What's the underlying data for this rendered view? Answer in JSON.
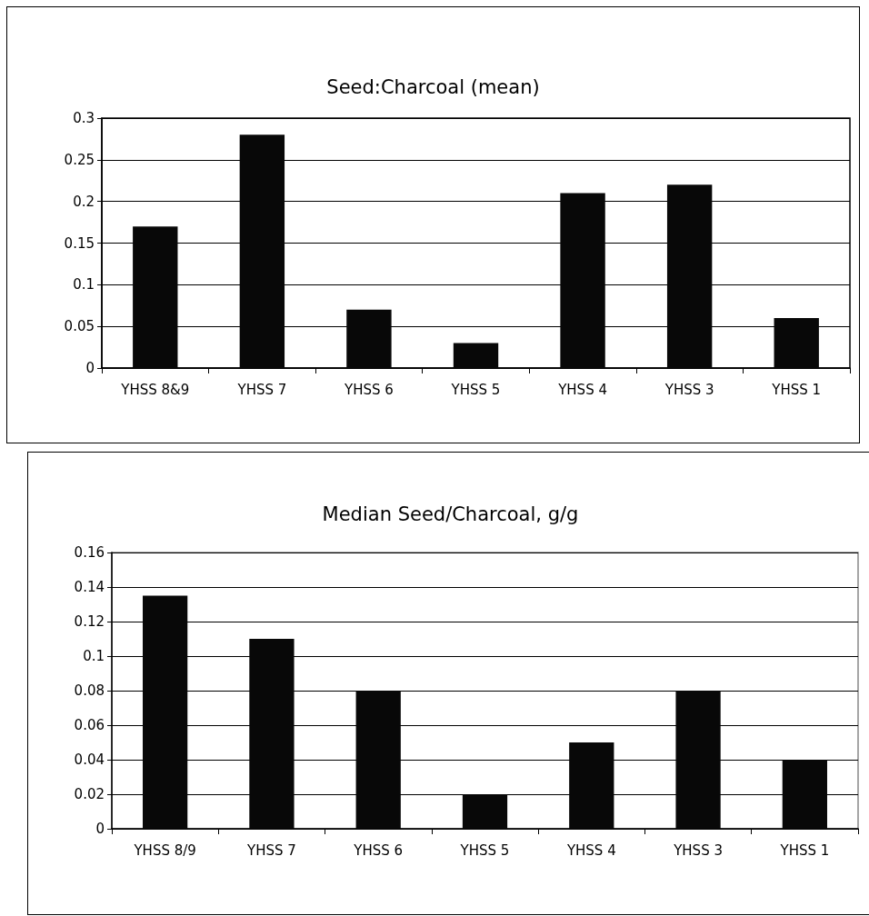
{
  "chart_data": [
    {
      "type": "bar",
      "title": "Seed:Charcoal (mean)",
      "categories": [
        "YHSS 8&9",
        "YHSS 7",
        "YHSS 6",
        "YHSS 5",
        "YHSS 4",
        "YHSS 3",
        "YHSS 1"
      ],
      "values": [
        0.17,
        0.28,
        0.07,
        0.03,
        0.21,
        0.22,
        0.06
      ],
      "color": "#080808",
      "ylim": [
        0,
        0.3
      ],
      "yticks": [
        0,
        0.05,
        0.1,
        0.15,
        0.2,
        0.25,
        0.3
      ],
      "grid": "y"
    },
    {
      "type": "bar",
      "title": "Median Seed/Charcoal, g/g",
      "categories": [
        "YHSS 8/9",
        "YHSS 7",
        "YHSS 6",
        "YHSS 5",
        "YHSS 4",
        "YHSS 3",
        "YHSS 1"
      ],
      "values": [
        0.135,
        0.11,
        0.08,
        0.02,
        0.05,
        0.08,
        0.04
      ],
      "color": "#080808",
      "ylim": [
        0,
        0.16
      ],
      "yticks": [
        0,
        0.02,
        0.04,
        0.06,
        0.08,
        0.1,
        0.12,
        0.14,
        0.16
      ],
      "grid": "y"
    }
  ]
}
